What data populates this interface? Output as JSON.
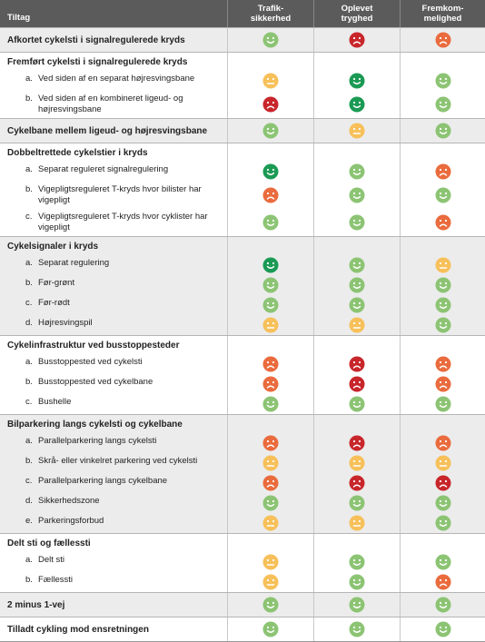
{
  "header": [
    [
      "Tiltag"
    ],
    [
      "Trafik-",
      "sikkerhed"
    ],
    [
      "Oplevet",
      "tryghed"
    ],
    [
      "Fremkom-",
      "melighed"
    ]
  ],
  "rating_colors": {
    "1": "#c8262b",
    "2": "#ea6b3d",
    "3": "#f7c05a",
    "4": "#8cc474",
    "5": "#1b9a54"
  },
  "groups": [
    {
      "title": "Afkortet cykelsti i signalregulerede kryds",
      "ratings": [
        4,
        1,
        2
      ]
    },
    {
      "title": "Fremført cykelsti i signalregulerede kryds",
      "items": [
        {
          "marker": "a.",
          "label": "Ved siden af en separat højresvingsbane",
          "ratings": [
            3,
            5,
            4
          ]
        },
        {
          "marker": "b.",
          "label": "Ved siden af en kombineret ligeud- og højresvingsbane",
          "ratings": [
            1,
            5,
            4
          ]
        }
      ]
    },
    {
      "title": "Cykelbane mellem ligeud- og højresvingsbane",
      "ratings": [
        4,
        3,
        4
      ]
    },
    {
      "title": "Dobbeltrettede cykelstier i kryds",
      "items": [
        {
          "marker": "a.",
          "label": "Separat reguleret signalregulering",
          "ratings": [
            5,
            4,
            2
          ]
        },
        {
          "marker": "b.",
          "label": "Vigepligtsreguleret T-kryds hvor bilister har vigepligt",
          "ratings": [
            2,
            4,
            4
          ]
        },
        {
          "marker": "c.",
          "label": "Vigepligtsreguleret T-kryds hvor cyklister har vigepligt",
          "ratings": [
            4,
            4,
            2
          ]
        }
      ]
    },
    {
      "title": "Cykelsignaler i kryds",
      "items": [
        {
          "marker": "a.",
          "label": "Separat regulering",
          "ratings": [
            5,
            4,
            3
          ]
        },
        {
          "marker": "b.",
          "label": "Før-grønt",
          "ratings": [
            4,
            4,
            4
          ]
        },
        {
          "marker": "c.",
          "label": "Før-rødt",
          "ratings": [
            4,
            4,
            4
          ]
        },
        {
          "marker": "d.",
          "label": "Højresvingspil",
          "ratings": [
            3,
            3,
            4
          ]
        }
      ]
    },
    {
      "title": "Cykelinfrastruktur ved busstoppesteder",
      "items": [
        {
          "marker": "a.",
          "label": "Busstoppested ved cykelsti",
          "ratings": [
            2,
            1,
            2
          ]
        },
        {
          "marker": "b.",
          "label": "Busstoppested ved cykelbane",
          "ratings": [
            2,
            1,
            2
          ]
        },
        {
          "marker": "c.",
          "label": "Bushelle",
          "ratings": [
            4,
            4,
            4
          ]
        }
      ]
    },
    {
      "title": "Bilparkering langs cykelsti og cykelbane",
      "items": [
        {
          "marker": "a.",
          "label": "Parallelparkering langs cykelsti",
          "ratings": [
            2,
            1,
            2
          ]
        },
        {
          "marker": "b.",
          "label": "Skrå- eller vinkelret parkering ved cykelsti",
          "ratings": [
            3,
            3,
            3
          ]
        },
        {
          "marker": "c.",
          "label": "Parallelparkering langs cykelbane",
          "ratings": [
            2,
            1,
            1
          ]
        },
        {
          "marker": "d.",
          "label": "Sikkerhedszone",
          "ratings": [
            4,
            4,
            4
          ]
        },
        {
          "marker": "e.",
          "label": "Parkeringsforbud",
          "ratings": [
            3,
            3,
            4
          ]
        }
      ]
    },
    {
      "title": "Delt sti og fællessti",
      "items": [
        {
          "marker": "a.",
          "label": "Delt sti",
          "ratings": [
            3,
            4,
            4
          ]
        },
        {
          "marker": "b.",
          "label": "Fællessti",
          "ratings": [
            3,
            4,
            2
          ]
        }
      ]
    },
    {
      "title": "2 minus 1-vej",
      "ratings": [
        4,
        4,
        4
      ]
    },
    {
      "title": "Tilladt cykling mod ensretningen",
      "ratings": [
        4,
        4,
        4
      ]
    }
  ]
}
